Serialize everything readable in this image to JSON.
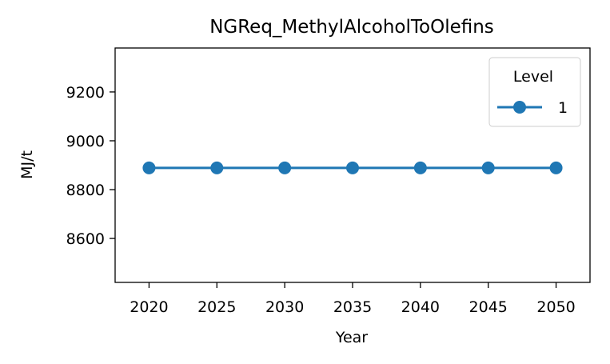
{
  "chart_data": {
    "type": "line",
    "title": "NGReq_MethylAlcoholToOlefins",
    "xlabel": "Year",
    "ylabel": "MJ/t",
    "x": [
      2020,
      2025,
      2030,
      2035,
      2040,
      2045,
      2050
    ],
    "xticks": [
      "2020",
      "2025",
      "2030",
      "2035",
      "2040",
      "2045",
      "2050"
    ],
    "xlim": [
      2017.5,
      2052.5
    ],
    "yticks": [
      "8600",
      "8800",
      "9000",
      "9200"
    ],
    "ylim": [
      8420,
      9380
    ],
    "grid": false,
    "legend": {
      "title": "Level",
      "placement": "top-right"
    },
    "series": [
      {
        "name": "1",
        "color": "#1f77b4",
        "marker": "circle",
        "values": [
          8889,
          8889,
          8889,
          8889,
          8889,
          8889,
          8889
        ]
      }
    ]
  }
}
